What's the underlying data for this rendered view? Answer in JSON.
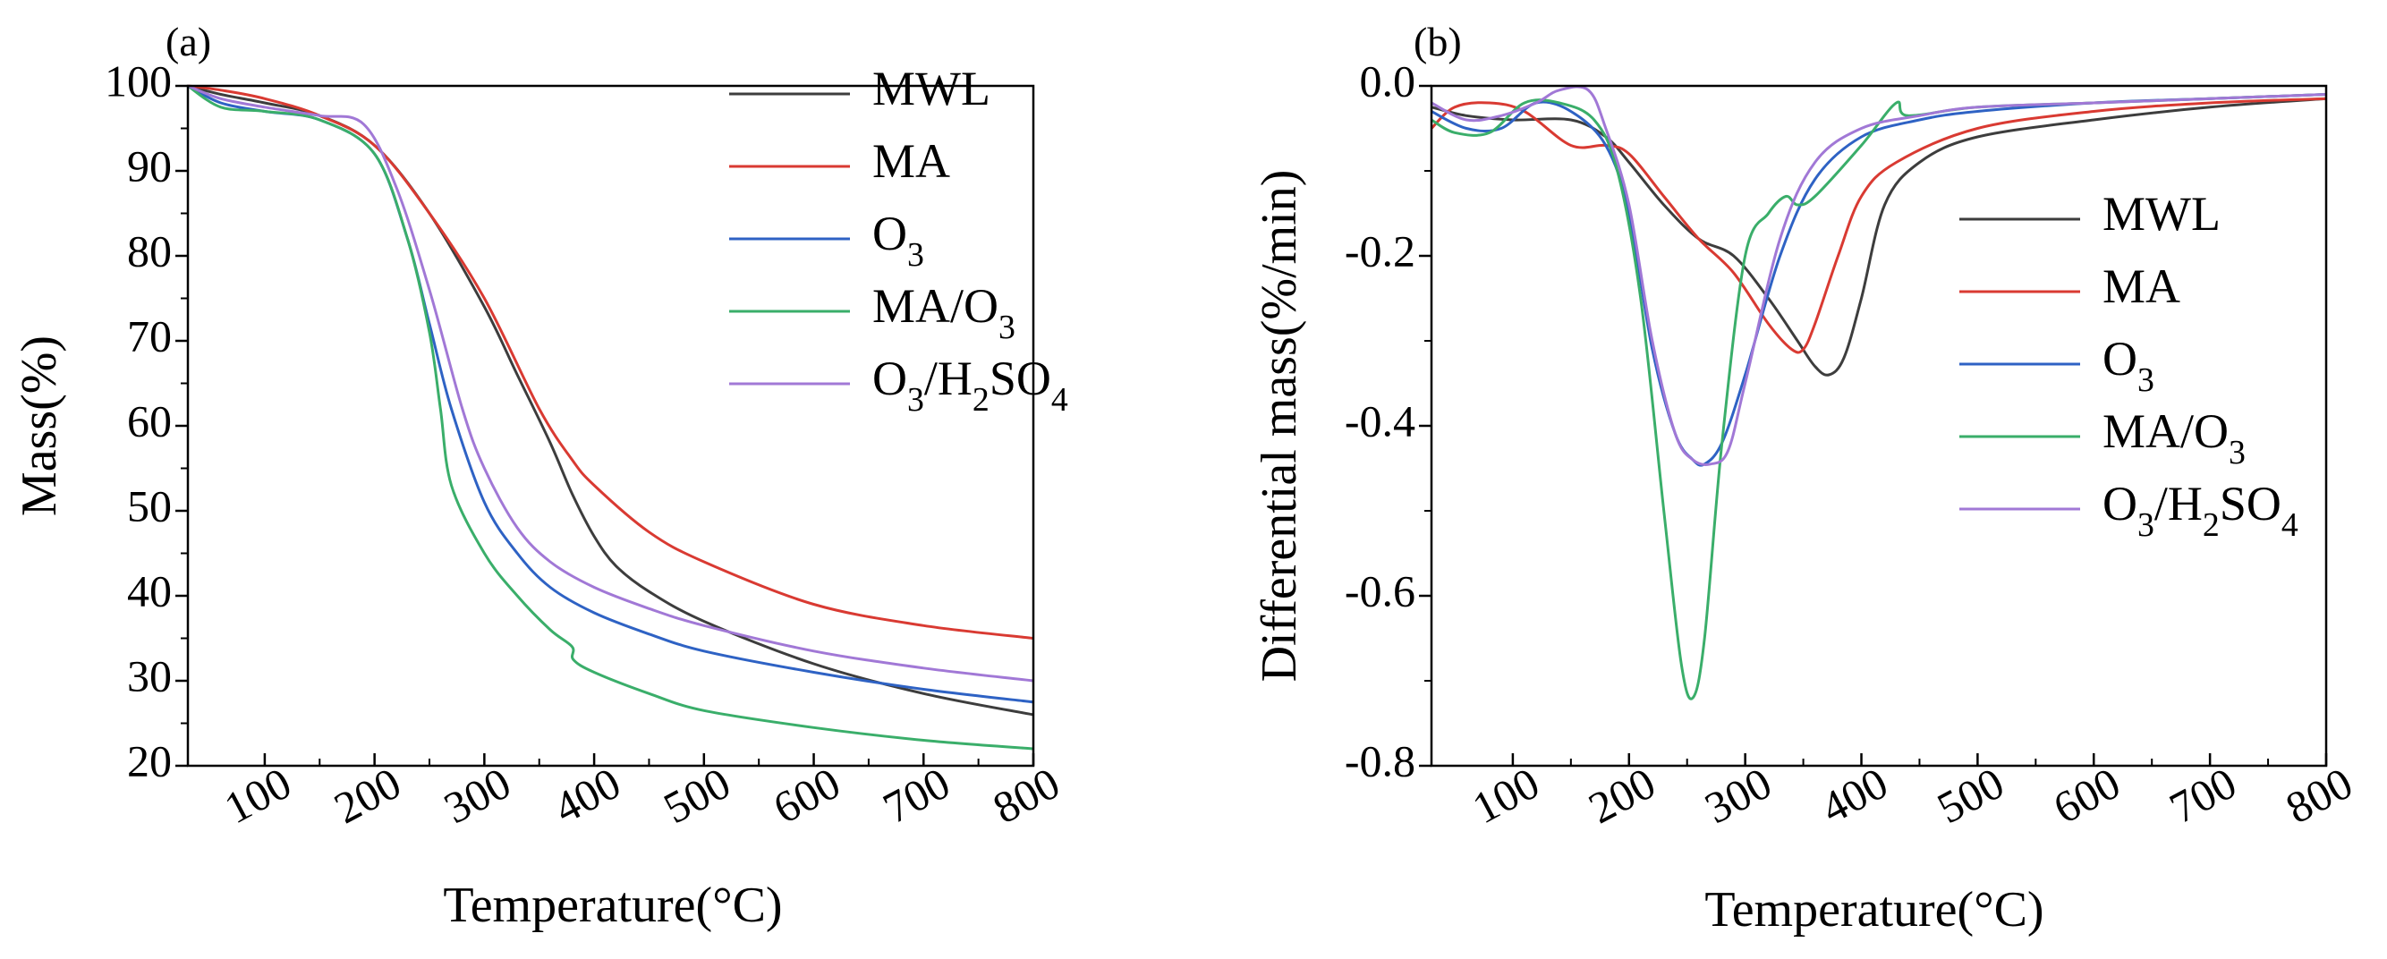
{
  "chart_data": [
    {
      "panel_label": "(a)",
      "type": "line",
      "xlabel": "Temperature(°C)",
      "ylabel": "Mass(%)",
      "xlim": [
        30,
        800
      ],
      "ylim": [
        20,
        100
      ],
      "xticks": [
        "100",
        "200",
        "300",
        "400",
        "500",
        "600",
        "700",
        "800"
      ],
      "xtick_values": [
        100,
        200,
        300,
        400,
        500,
        600,
        700,
        800
      ],
      "yticks": [
        "100",
        "90",
        "80",
        "70",
        "60",
        "50",
        "40",
        "30",
        "20"
      ],
      "ytick_values": [
        100,
        90,
        80,
        70,
        60,
        50,
        40,
        30,
        20
      ],
      "legend_position": "top-right",
      "series": [
        {
          "name": "MWL",
          "color": "#3d3d3d",
          "x": [
            30,
            60,
            100,
            150,
            200,
            250,
            300,
            330,
            360,
            380,
            400,
            420,
            450,
            500,
            600,
            700,
            800
          ],
          "y": [
            100,
            99,
            98,
            96.5,
            93,
            85,
            74,
            66,
            58,
            52,
            47,
            43.5,
            40.5,
            37,
            32,
            28.5,
            26
          ]
        },
        {
          "name": "MA",
          "color": "#d93a32",
          "x": [
            30,
            60,
            100,
            150,
            200,
            250,
            300,
            350,
            380,
            400,
            450,
            500,
            600,
            700,
            800
          ],
          "y": [
            100,
            99.5,
            98.5,
            96.5,
            93,
            85,
            75,
            62,
            56,
            53,
            47.5,
            44,
            39,
            36.5,
            35
          ]
        },
        {
          "name": "O3",
          "color": "#2e62c4",
          "x": [
            30,
            60,
            100,
            150,
            200,
            230,
            250,
            270,
            300,
            330,
            360,
            400,
            450,
            500,
            600,
            700,
            800
          ],
          "y": [
            100,
            98,
            97,
            96,
            92,
            82,
            72,
            62,
            51,
            45,
            41,
            38,
            35.5,
            33.5,
            31,
            29,
            27.5
          ]
        },
        {
          "name": "MA/O3",
          "color": "#3aae6a",
          "x": [
            30,
            60,
            100,
            150,
            200,
            230,
            250,
            260,
            270,
            300,
            330,
            360,
            380,
            381,
            400,
            450,
            500,
            600,
            700,
            800
          ],
          "y": [
            100,
            97.5,
            97,
            96,
            92,
            82,
            71,
            62,
            53,
            45,
            40,
            36,
            34,
            32.5,
            31,
            28.5,
            26.5,
            24.5,
            23,
            22
          ]
        },
        {
          "name": "O3/H2SO4",
          "color": "#a178d6",
          "x": [
            30,
            60,
            100,
            150,
            190,
            220,
            250,
            280,
            300,
            330,
            360,
            400,
            450,
            500,
            600,
            700,
            800
          ],
          "y": [
            100,
            98.5,
            97.5,
            96.5,
            95.5,
            88,
            76,
            62,
            55,
            48,
            44,
            41,
            38.5,
            36.5,
            33.5,
            31.5,
            30
          ]
        }
      ]
    },
    {
      "panel_label": "(b)",
      "type": "line",
      "xlabel": "Temperature(°C)",
      "ylabel": "Differential mass(%/min)",
      "xlim": [
        30,
        800
      ],
      "ylim": [
        -0.8,
        0.0
      ],
      "xticks": [
        "100",
        "200",
        "300",
        "400",
        "500",
        "600",
        "700",
        "800"
      ],
      "xtick_values": [
        100,
        200,
        300,
        400,
        500,
        600,
        700,
        800
      ],
      "yticks": [
        "0.0",
        "-0.2",
        "-0.4",
        "-0.6",
        "-0.8"
      ],
      "ytick_values": [
        0.0,
        -0.2,
        -0.4,
        -0.6,
        -0.8
      ],
      "legend_position": "right",
      "series": [
        {
          "name": "MWL",
          "color": "#3d3d3d",
          "x": [
            30,
            60,
            100,
            150,
            180,
            200,
            230,
            260,
            290,
            320,
            345,
            360,
            372,
            385,
            400,
            420,
            450,
            500,
            600,
            700,
            800
          ],
          "y": [
            -0.025,
            -0.035,
            -0.04,
            -0.04,
            -0.06,
            -0.09,
            -0.14,
            -0.18,
            -0.2,
            -0.25,
            -0.3,
            -0.33,
            -0.34,
            -0.32,
            -0.25,
            -0.14,
            -0.09,
            -0.06,
            -0.04,
            -0.025,
            -0.015
          ]
        },
        {
          "name": "MA",
          "color": "#d93a32",
          "x": [
            30,
            50,
            80,
            110,
            150,
            180,
            200,
            230,
            260,
            290,
            320,
            340,
            350,
            360,
            380,
            400,
            430,
            500,
            600,
            700,
            800
          ],
          "y": [
            -0.05,
            -0.025,
            -0.02,
            -0.03,
            -0.07,
            -0.07,
            -0.08,
            -0.13,
            -0.18,
            -0.22,
            -0.28,
            -0.31,
            -0.31,
            -0.28,
            -0.2,
            -0.13,
            -0.09,
            -0.05,
            -0.03,
            -0.02,
            -0.015
          ]
        },
        {
          "name": "O3",
          "color": "#2e62c4",
          "x": [
            30,
            60,
            90,
            120,
            150,
            180,
            200,
            220,
            240,
            255,
            265,
            280,
            300,
            330,
            360,
            400,
            450,
            500,
            600,
            700,
            800
          ],
          "y": [
            -0.03,
            -0.05,
            -0.05,
            -0.02,
            -0.03,
            -0.07,
            -0.15,
            -0.31,
            -0.41,
            -0.44,
            -0.445,
            -0.42,
            -0.34,
            -0.2,
            -0.11,
            -0.06,
            -0.04,
            -0.03,
            -0.02,
            -0.015,
            -0.01
          ]
        },
        {
          "name": "MA/O3",
          "color": "#3aae6a",
          "x": [
            30,
            50,
            80,
            110,
            140,
            170,
            190,
            210,
            230,
            245,
            255,
            265,
            280,
            300,
            320,
            335,
            345,
            360,
            400,
            430,
            440,
            500,
            600,
            700,
            800
          ],
          "y": [
            -0.04,
            -0.055,
            -0.055,
            -0.02,
            -0.02,
            -0.04,
            -0.1,
            -0.25,
            -0.5,
            -0.68,
            -0.72,
            -0.65,
            -0.42,
            -0.2,
            -0.15,
            -0.13,
            -0.14,
            -0.13,
            -0.07,
            -0.02,
            -0.035,
            -0.025,
            -0.02,
            -0.015,
            -0.01
          ]
        },
        {
          "name": "O3/H2SO4",
          "color": "#a178d6",
          "x": [
            30,
            60,
            90,
            120,
            140,
            165,
            180,
            200,
            220,
            240,
            255,
            270,
            285,
            300,
            330,
            360,
            400,
            450,
            500,
            600,
            700,
            800
          ],
          "y": [
            -0.02,
            -0.04,
            -0.035,
            -0.02,
            -0.005,
            -0.005,
            -0.05,
            -0.14,
            -0.3,
            -0.41,
            -0.44,
            -0.445,
            -0.43,
            -0.35,
            -0.18,
            -0.09,
            -0.05,
            -0.035,
            -0.025,
            -0.02,
            -0.015,
            -0.01
          ]
        }
      ]
    }
  ],
  "legend_labels": [
    {
      "main": "MWL"
    },
    {
      "main": "MA"
    },
    {
      "main": "O",
      "sub": "3"
    },
    {
      "main": "MA/O",
      "sub": "3"
    },
    {
      "main": "O",
      "sub": "3",
      "main2": "/H",
      "sub2": "2",
      "main3": "SO",
      "sub3": "4"
    }
  ]
}
